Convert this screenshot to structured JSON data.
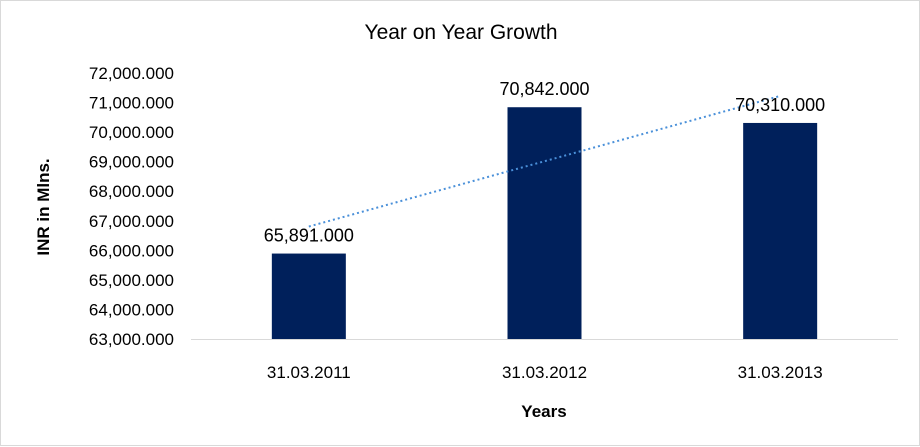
{
  "chart_data": {
    "type": "bar",
    "title": "Year on Year Growth",
    "xlabel": "Years",
    "ylabel": "INR in Mlns.",
    "categories": [
      "31.03.2011",
      "31.03.2012",
      "31.03.2013"
    ],
    "values": [
      65891,
      70842,
      70310
    ],
    "value_labels": [
      "65,891.000",
      "70,842.000",
      "70,310.000"
    ],
    "ylim": [
      63000,
      72000
    ],
    "ytick_step": 1000,
    "ytick_labels": [
      "63,000.000",
      "64,000.000",
      "65,000.000",
      "66,000.000",
      "67,000.000",
      "68,000.000",
      "69,000.000",
      "70,000.000",
      "71,000.000",
      "72,000.000"
    ],
    "trendline": "linear",
    "grid": false,
    "legend": "none",
    "colors": {
      "bar": "#00205b",
      "trendline": "#4a90d9",
      "axis": "#d9d9d9"
    }
  }
}
